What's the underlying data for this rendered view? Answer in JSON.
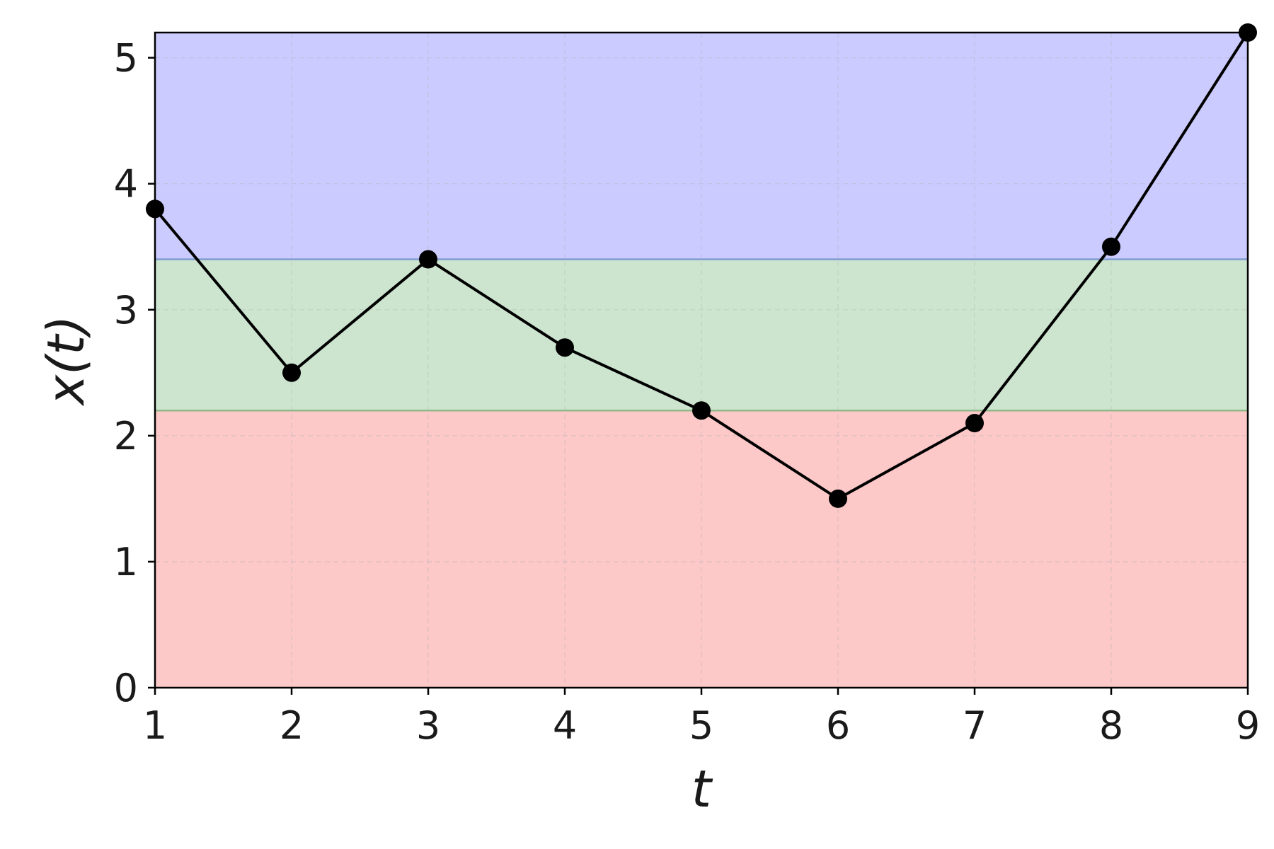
{
  "chart_data": {
    "type": "line",
    "xlabel": "t",
    "ylabel": "x(t)",
    "xlim": [
      1,
      9
    ],
    "ylim": [
      0,
      5.2
    ],
    "xticks": [
      1,
      2,
      3,
      4,
      5,
      6,
      7,
      8,
      9
    ],
    "yticks": [
      0,
      1,
      2,
      3,
      4,
      5
    ],
    "grid": true,
    "series": [
      {
        "x": [
          1,
          2,
          3,
          4,
          5,
          6,
          7,
          8,
          9
        ],
        "y": [
          3.8,
          2.5,
          3.4,
          2.7,
          2.2,
          1.5,
          2.1,
          3.5,
          5.2
        ],
        "color": "#000000",
        "marker": "circle"
      }
    ],
    "bands": [
      {
        "y0": 0,
        "y1": 2.2,
        "color": "#fcc8c8"
      },
      {
        "y0": 2.2,
        "y1": 3.4,
        "color": "#cde5cf"
      },
      {
        "y0": 3.4,
        "y1": 5.2,
        "color": "#cccbff"
      }
    ],
    "band_edge_lines": [
      {
        "y": 2.2,
        "color": "#8fb98a"
      },
      {
        "y": 3.4,
        "color": "#7f9ccf"
      }
    ]
  }
}
